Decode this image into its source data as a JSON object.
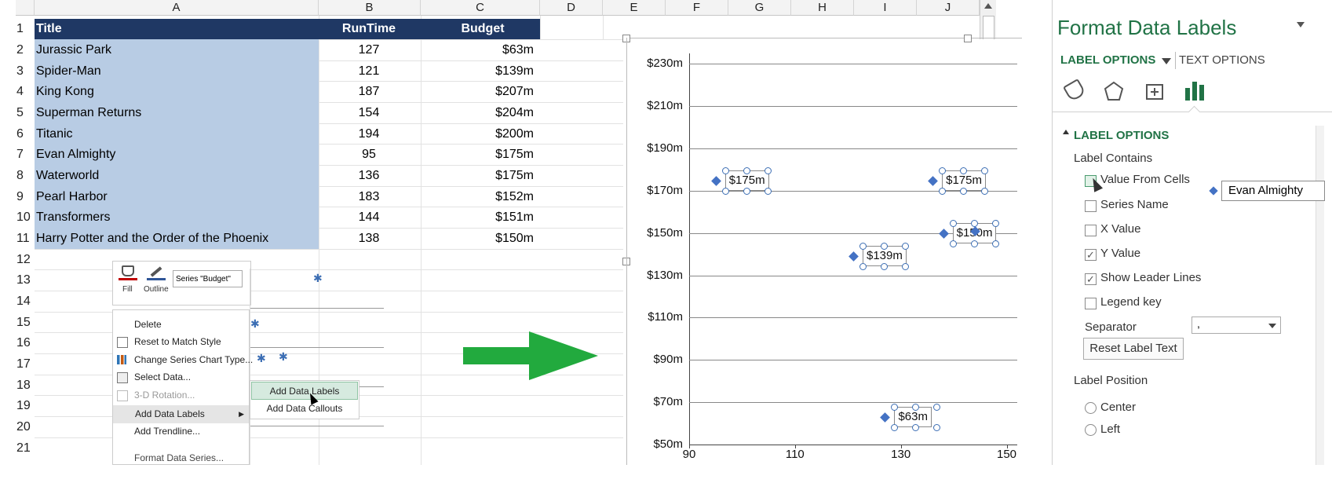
{
  "sheet": {
    "columns": [
      "A",
      "B",
      "C",
      "D",
      "E",
      "F",
      "G",
      "H",
      "I",
      "J"
    ],
    "rows": [
      "1",
      "2",
      "3",
      "4",
      "5",
      "6",
      "7",
      "8",
      "9",
      "10",
      "11",
      "12",
      "13",
      "14",
      "15",
      "16",
      "17",
      "18",
      "19",
      "20",
      "21"
    ],
    "header": {
      "title": "Title",
      "runtime": "RunTime",
      "budget": "Budget"
    },
    "data": [
      {
        "title": "Jurassic Park",
        "runtime": "127",
        "budget": "$63m"
      },
      {
        "title": "Spider-Man",
        "runtime": "121",
        "budget": "$139m"
      },
      {
        "title": "King Kong",
        "runtime": "187",
        "budget": "$207m"
      },
      {
        "title": "Superman Returns",
        "runtime": "154",
        "budget": "$204m"
      },
      {
        "title": "Titanic",
        "runtime": "194",
        "budget": "$200m"
      },
      {
        "title": "Evan Almighty",
        "runtime": "95",
        "budget": "$175m"
      },
      {
        "title": "Waterworld",
        "runtime": "136",
        "budget": "$175m"
      },
      {
        "title": "Pearl Harbor",
        "runtime": "183",
        "budget": "$152m"
      },
      {
        "title": "Transformers",
        "runtime": "144",
        "budget": "$151m"
      },
      {
        "title": "Harry Potter and the Order of the Phoenix",
        "runtime": "138",
        "budget": "$150m"
      }
    ]
  },
  "mini_toolbar": {
    "fill": "Fill",
    "outline": "Outline",
    "series_select": "Series \"Budget\""
  },
  "context_menu": {
    "items": [
      "Delete",
      "Reset to Match Style",
      "Change Series Chart Type...",
      "Select Data...",
      "3-D Rotation...",
      "Add Data Labels",
      "Add Trendline...",
      "Format Data Series..."
    ],
    "submenu": [
      "Add Data Labels",
      "Add Data Callouts"
    ]
  },
  "chart_data": {
    "type": "scatter",
    "x_ticks": [
      "90",
      "110",
      "130",
      "150"
    ],
    "y_ticks": [
      "$230m",
      "$210m",
      "$190m",
      "$170m",
      "$150m",
      "$130m",
      "$110m",
      "$90m",
      "$70m",
      "$50m"
    ],
    "xlim": [
      90,
      152
    ],
    "ylim": [
      50,
      235
    ],
    "points": [
      {
        "x": 95,
        "y": 175,
        "label": "$175m"
      },
      {
        "x": 136,
        "y": 175,
        "label": "$175m"
      },
      {
        "x": 138,
        "y": 150,
        "label": "$150m"
      },
      {
        "x": 144,
        "y": 151,
        "label": "$151m"
      },
      {
        "x": 121,
        "y": 139,
        "label": "$139m"
      },
      {
        "x": 127,
        "y": 63,
        "label": "$63m"
      }
    ],
    "grid": true
  },
  "panel": {
    "title": "Format Data Labels",
    "tab_label_options": "LABEL OPTIONS",
    "tab_text_options": "TEXT OPTIONS",
    "section_label_options": "LABEL OPTIONS",
    "label_contains": "Label Contains",
    "cb_value_from_cells": "Value From Cells",
    "cb_series_name": "Series Name",
    "cb_x_value": "X Value",
    "cb_y_value": "Y Value",
    "cb_leader_lines": "Show Leader Lines",
    "cb_legend_key": "Legend key",
    "separator": "Separator",
    "separator_value": ",",
    "reset_label_text": "Reset Label Text",
    "label_position": "Label Position",
    "pos_center": "Center",
    "pos_left": "Left",
    "floating_label": "Evan Almighty"
  },
  "colors": {
    "header_bg": "#1f3864",
    "selection": "#b8cce4",
    "accent_green": "#2e7d32",
    "arrow_green": "#22aa3e",
    "point": "#4472c4"
  }
}
